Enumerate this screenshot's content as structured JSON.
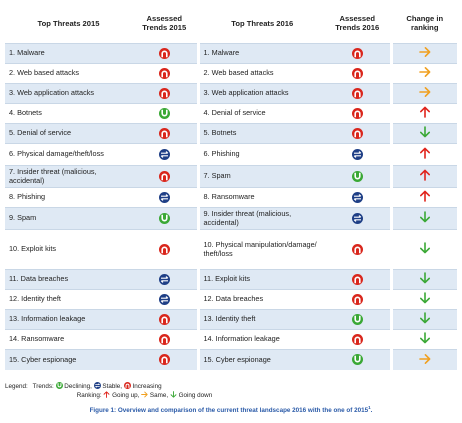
{
  "headers": {
    "threats2015": "Top Threats 2015",
    "trends2015": "Assessed Trends 2015",
    "threats2016": "Top Threats 2016",
    "trends2016": "Assessed Trends 2016",
    "change": "Change in ranking"
  },
  "rows": [
    {
      "t15": "1. Malware",
      "tr15": "increasing",
      "t16": "1. Malware",
      "tr16": "increasing",
      "chg": "same"
    },
    {
      "t15": "2. Web based attacks",
      "tr15": "increasing",
      "t16": "2. Web based attacks",
      "tr16": "increasing",
      "chg": "same"
    },
    {
      "t15": "3. Web application attacks",
      "tr15": "increasing",
      "t16": "3. Web application attacks",
      "tr16": "increasing",
      "chg": "same"
    },
    {
      "t15": "4. Botnets",
      "tr15": "declining",
      "t16": "4. Denial of service",
      "tr16": "increasing",
      "chg": "up"
    },
    {
      "t15": "5. Denial of service",
      "tr15": "increasing",
      "t16": "5. Botnets",
      "tr16": "increasing",
      "chg": "down"
    },
    {
      "t15": "6. Physical damage/theft/loss",
      "tr15": "stable",
      "t16": "6. Phishing",
      "tr16": "stable",
      "chg": "up"
    },
    {
      "t15": "7. Insider threat (malicious, accidental)",
      "tr15": "increasing",
      "t16": "7. Spam",
      "tr16": "declining",
      "chg": "up"
    },
    {
      "t15": "8. Phishing",
      "tr15": "stable",
      "t16": "8. Ransomware",
      "tr16": "stable",
      "chg": "up"
    },
    {
      "t15": "9. Spam",
      "tr15": "declining",
      "t16": "9. Insider threat (malicious, accidental)",
      "tr16": "stable",
      "chg": "down"
    },
    {
      "t15": "10. Exploit kits",
      "tr15": "increasing",
      "t16": "10. Physical manipulation/damage/ theft/loss",
      "tr16": "increasing",
      "chg": "down"
    },
    {
      "t15": "11. Data breaches",
      "tr15": "stable",
      "t16": "11. Exploit kits",
      "tr16": "increasing",
      "chg": "down"
    },
    {
      "t15": "12. Identity theft",
      "tr15": "stable",
      "t16": "12. Data breaches",
      "tr16": "increasing",
      "chg": "down"
    },
    {
      "t15": "13. Information leakage",
      "tr15": "increasing",
      "t16": "13. Identity theft",
      "tr16": "declining",
      "chg": "down"
    },
    {
      "t15": "14. Ransomware",
      "tr15": "increasing",
      "t16": "14. Information leakage",
      "tr16": "increasing",
      "chg": "down"
    },
    {
      "t15": "15. Cyber espionage",
      "tr15": "increasing",
      "t16": "15. Cyber espionage",
      "tr16": "declining",
      "chg": "same"
    }
  ],
  "legend": {
    "label": "Legend:",
    "trends_label": "Trends:",
    "declining": "Declining,",
    "stable": "Stable,",
    "increasing": "Increasing",
    "ranking_label": "Ranking:",
    "up": "Going up,",
    "same": "Same,",
    "down": "Going down"
  },
  "caption": {
    "text": "Figure 1: Overview and comparison of the current threat landscape 2016 with the one of 2015",
    "sup": "1",
    "end": "."
  },
  "colors": {
    "increasing": "#d9261c",
    "declining": "#3aa835",
    "stable": "#1f3f86",
    "arrow_up": "#e0231b",
    "arrow_down": "#3aa835",
    "arrow_same": "#f0a020",
    "row_band": "#dfe9f4",
    "caption": "#2a5aa8"
  },
  "icons": {
    "increasing": "trend-increasing-icon",
    "declining": "trend-declining-icon",
    "stable": "trend-stable-icon",
    "up": "arrow-up-icon",
    "down": "arrow-down-icon",
    "same": "arrow-right-icon"
  }
}
